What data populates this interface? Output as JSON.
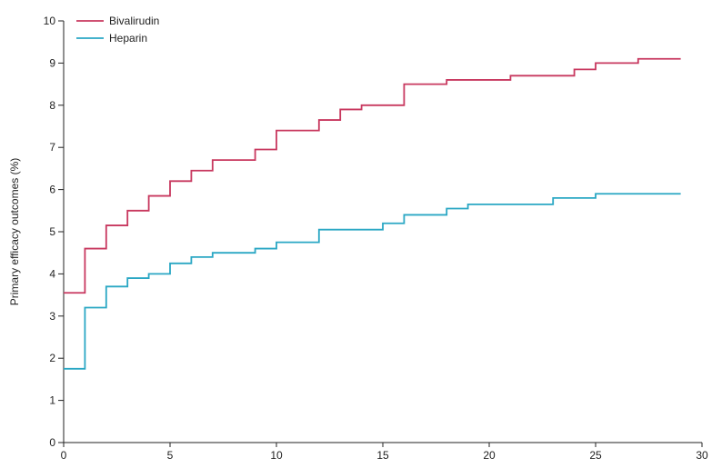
{
  "chart_data": {
    "type": "line",
    "step": true,
    "ylabel": "Primary efficacy outcomes (%)",
    "xlabel": "",
    "xlim": [
      0,
      30
    ],
    "ylim": [
      0,
      10
    ],
    "xticks": [
      0,
      5,
      10,
      15,
      20,
      25,
      30
    ],
    "yticks": [
      0,
      1,
      2,
      3,
      4,
      5,
      6,
      7,
      8,
      9,
      10
    ],
    "grid": false,
    "legend": "top-left",
    "series": [
      {
        "name": "Bivalirudin",
        "color": "#c8385f",
        "x": [
          0,
          1,
          2,
          3,
          4,
          5,
          6,
          7,
          9,
          10,
          12,
          13,
          14,
          16,
          18,
          21,
          24,
          25,
          27,
          29
        ],
        "y": [
          3.55,
          4.6,
          5.15,
          5.5,
          5.85,
          6.2,
          6.45,
          6.7,
          6.95,
          7.4,
          7.65,
          7.9,
          8.0,
          8.5,
          8.6,
          8.7,
          8.85,
          9.0,
          9.1,
          9.1
        ]
      },
      {
        "name": "Heparin",
        "color": "#2aa7c4",
        "x": [
          0,
          1,
          2,
          3,
          4,
          5,
          6,
          7,
          9,
          10,
          12,
          15,
          16,
          18,
          19,
          23,
          25,
          29
        ],
        "y": [
          1.75,
          3.2,
          3.7,
          3.9,
          4.0,
          4.25,
          4.4,
          4.5,
          4.6,
          4.75,
          5.05,
          5.2,
          5.4,
          5.55,
          5.65,
          5.8,
          5.9,
          5.9
        ]
      }
    ]
  }
}
